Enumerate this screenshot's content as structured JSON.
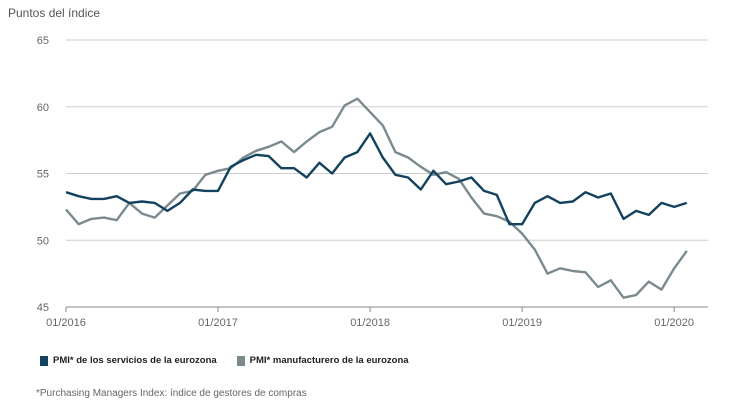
{
  "chart_data": {
    "type": "line",
    "ylabel": "Puntos del índice",
    "ylim": [
      45,
      65
    ],
    "yticks": [
      45,
      50,
      55,
      60,
      65
    ],
    "x_tick_labels": [
      "01/2016",
      "01/2017",
      "01/2018",
      "01/2019",
      "01/2020"
    ],
    "x_start": "01/2016",
    "x_end": "03/2020",
    "grid": true,
    "legend_position": "bottom-left",
    "series": [
      {
        "name": "PMI* de los servicios de la eurozona",
        "color": "#13425e",
        "values": [
          53.6,
          53.3,
          53.1,
          53.1,
          53.3,
          52.8,
          52.9,
          52.8,
          52.2,
          52.8,
          53.8,
          53.7,
          53.7,
          55.5,
          56.0,
          56.4,
          56.3,
          55.4,
          55.4,
          54.7,
          55.8,
          55.0,
          56.2,
          56.6,
          58.0,
          56.2,
          54.9,
          54.7,
          53.8,
          55.2,
          54.2,
          54.4,
          54.7,
          53.7,
          53.4,
          51.2,
          51.2,
          52.8,
          53.3,
          52.8,
          52.9,
          53.6,
          53.2,
          53.5,
          51.6,
          52.2,
          51.9,
          52.8,
          52.5,
          52.8
        ]
      },
      {
        "name": "PMI* manufacturero de la eurozona",
        "color": "#7a8a8f",
        "values": [
          52.3,
          51.2,
          51.6,
          51.7,
          51.5,
          52.8,
          52.0,
          51.7,
          52.6,
          53.5,
          53.7,
          54.9,
          55.2,
          55.4,
          56.2,
          56.7,
          57.0,
          57.4,
          56.6,
          57.4,
          58.1,
          58.5,
          60.1,
          60.6,
          59.6,
          58.6,
          56.6,
          56.2,
          55.5,
          54.9,
          55.1,
          54.6,
          53.2,
          52.0,
          51.8,
          51.4,
          50.5,
          49.3,
          47.5,
          47.9,
          47.7,
          47.6,
          46.5,
          47.0,
          45.7,
          45.9,
          46.9,
          46.3,
          47.9,
          49.2
        ]
      }
    ]
  },
  "legend": {
    "services": "PMI* de los servicios de la eurozona",
    "manufacturing": "PMI* manufacturero de la eurozona"
  },
  "footnote": "*Purchasing Managers Index: índice de gestores de compras",
  "colors": {
    "grid": "#cfcfcf",
    "axis": "#888888"
  }
}
